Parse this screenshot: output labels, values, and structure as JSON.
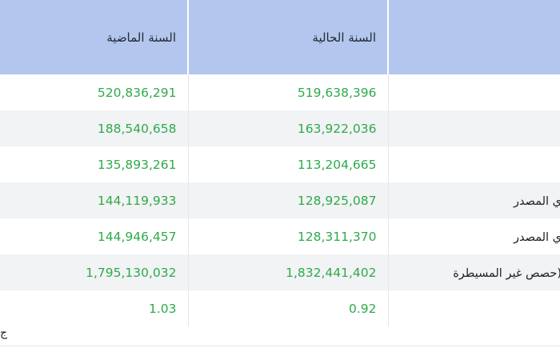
{
  "header": {
    "current_year": "السنة الحالية",
    "previous_year": "السنة الماضية",
    "item": ""
  },
  "rows": [
    {
      "item": "",
      "current": "519,638,396",
      "previous": "520,836,291"
    },
    {
      "item": "",
      "current": "163,922,036",
      "previous": "188,540,658"
    },
    {
      "item": "",
      "current": "113,204,665",
      "previous": "135,893,261"
    },
    {
      "item": "ي المصدر",
      "current": "128,925,087",
      "previous": "144,119,933"
    },
    {
      "item": "ي المصدر",
      "current": "128,311,370",
      "previous": "144,946,457"
    },
    {
      "item": "حصص غير المسيطرة)",
      "current": "1,832,441,402",
      "previous": "1,795,130,032"
    },
    {
      "item": "",
      "current": "0.92",
      "previous": "1.03"
    }
  ],
  "footer": {
    "text": "ج"
  },
  "colors": {
    "header_bg": "#b3c6ed",
    "value_green": "#2eaa4a",
    "row_shade": "#f2f3f5"
  }
}
